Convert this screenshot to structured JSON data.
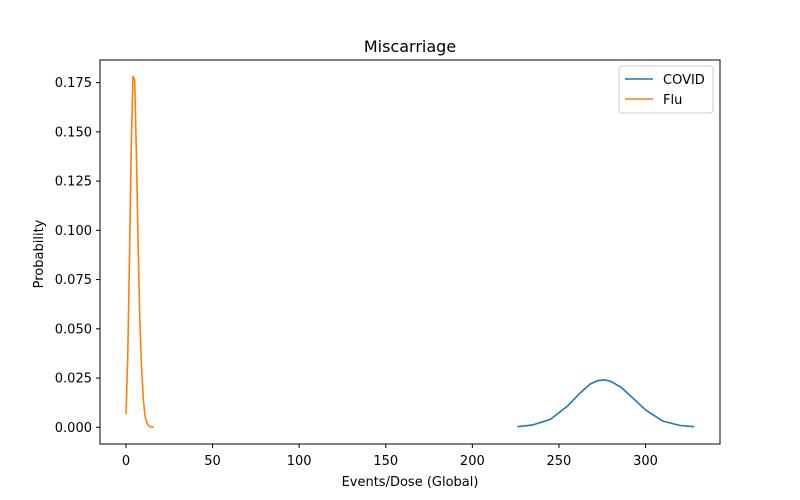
{
  "chart_data": {
    "type": "line",
    "title": "Miscarriage",
    "xlabel": "Events/Dose (Global)",
    "ylabel": "Probability",
    "xlim": [
      -15,
      343
    ],
    "ylim": [
      -0.0085,
      0.1865
    ],
    "xticks": [
      0,
      50,
      100,
      150,
      200,
      250,
      300
    ],
    "xtick_labels": [
      "0",
      "50",
      "100",
      "150",
      "200",
      "250",
      "300"
    ],
    "yticks": [
      0.0,
      0.025,
      0.05,
      0.075,
      0.1,
      0.125,
      0.15,
      0.175
    ],
    "ytick_labels": [
      "0.000",
      "0.025",
      "0.050",
      "0.075",
      "0.100",
      "0.125",
      "0.150",
      "0.175"
    ],
    "grid": false,
    "legend_position": "top-right",
    "series": [
      {
        "name": "COVID",
        "color": "#1f77b4",
        "x": [
          226,
          235,
          245,
          255,
          262,
          268,
          272,
          276,
          280,
          286,
          292,
          300,
          310,
          320,
          328
        ],
        "y": [
          0.0003,
          0.0012,
          0.004,
          0.0108,
          0.0172,
          0.0219,
          0.0236,
          0.0241,
          0.0233,
          0.0202,
          0.0154,
          0.0088,
          0.0031,
          0.0009,
          0.0003
        ]
      },
      {
        "name": "Flu",
        "color": "#ff7f0e",
        "x": [
          0,
          1,
          2,
          3,
          4,
          5,
          6,
          7,
          8,
          9,
          10,
          11,
          12,
          13,
          14,
          16
        ],
        "y": [
          0.0068,
          0.035,
          0.0845,
          0.1403,
          0.1782,
          0.1765,
          0.1396,
          0.0933,
          0.0539,
          0.0306,
          0.0143,
          0.0057,
          0.0025,
          0.0008,
          0.0003,
          0.0001
        ]
      }
    ]
  }
}
